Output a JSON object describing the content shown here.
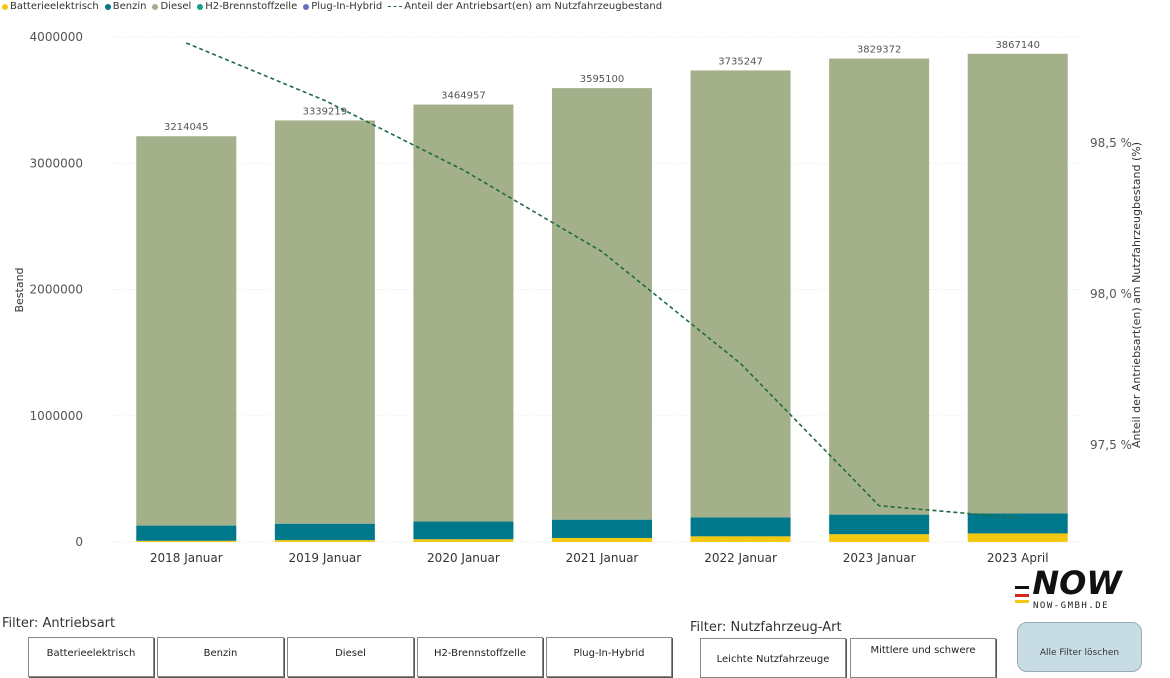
{
  "legend": {
    "items": [
      {
        "label": "Batterieelektrisch",
        "color": "#f2c811"
      },
      {
        "label": "Benzin",
        "color": "#00788c"
      },
      {
        "label": "Diesel",
        "color": "#a3b08a"
      },
      {
        "label": "H2-Brennstoffzelle",
        "color": "#14a085"
      },
      {
        "label": "Plug-In-Hybrid",
        "color": "#6a6ec0"
      }
    ],
    "line_label": "Anteil der Antriebsart(en) am Nutzfahrzeugbestand"
  },
  "chart_data": {
    "type": "bar",
    "stacked": true,
    "categories": [
      "2018 Januar",
      "2019 Januar",
      "2020 Januar",
      "2021 Januar",
      "2022 Januar",
      "2023 Januar",
      "2023 April"
    ],
    "series": [
      {
        "name": "Batterieelektrisch",
        "color": "#f2c811",
        "values": [
          10000,
          15000,
          22000,
          32000,
          45000,
          62000,
          68000
        ]
      },
      {
        "name": "Benzin",
        "color": "#00788c",
        "values": [
          120000,
          130000,
          140000,
          145000,
          150000,
          155000,
          158000
        ]
      },
      {
        "name": "Diesel",
        "color": "#a3b08a",
        "values": [
          3084045,
          3194219,
          3302957,
          3418100,
          3540247,
          3612372,
          3641140
        ]
      },
      {
        "name": "H2-Brennstoffzelle",
        "color": "#14a085",
        "values": [
          0,
          0,
          0,
          0,
          0,
          0,
          0
        ]
      },
      {
        "name": "Plug-In-Hybrid",
        "color": "#6a6ec0",
        "values": [
          0,
          0,
          0,
          0,
          0,
          0,
          0
        ]
      }
    ],
    "totals": [
      3214045,
      3339219,
      3464957,
      3595100,
      3735247,
      3829372,
      3867140
    ],
    "total_labels": [
      "3214045",
      "3339219",
      "3464957",
      "3595100",
      "3735247",
      "3829372",
      "3867140"
    ],
    "line": {
      "name": "Anteil der Antriebsart(en) am Nutzfahrzeugbestand",
      "color": "#1e6b44",
      "style": "dashed",
      "values": [
        98.83,
        98.64,
        98.41,
        98.14,
        97.77,
        97.3,
        97.26
      ]
    },
    "ylabel": "Bestand",
    "y2label": "Anteil der Antriebsart(en) am Nutzfahrzeugbestand (%)",
    "ylim": [
      0,
      4000000
    ],
    "yticks": [
      "0",
      "1000000",
      "2000000",
      "3000000",
      "4000000"
    ],
    "y2lim": [
      97.18,
      98.85
    ],
    "y2ticks": [
      {
        "value": 97.5,
        "label": "97,5 %"
      },
      {
        "value": 98.0,
        "label": "98,0 %"
      },
      {
        "value": 98.5,
        "label": "98,5 %"
      }
    ],
    "grid": true
  },
  "filters": {
    "antriebsart": {
      "title": "Filter: Antriebsart",
      "buttons": [
        "Batterieelektrisch",
        "Benzin",
        "Diesel",
        "H2-Brennstoffzelle",
        "Plug-In-Hybrid"
      ]
    },
    "nutzfahrzeug": {
      "title": "Filter: Nutzfahrzeug-Art",
      "buttons": [
        "Leichte Nutzfahrzeuge",
        "Mittlere und schwere"
      ]
    },
    "clear_label": "Alle Filter löschen"
  },
  "logo": {
    "wordmark": "NOW",
    "url_text": "NOW-GMBH.DE"
  }
}
